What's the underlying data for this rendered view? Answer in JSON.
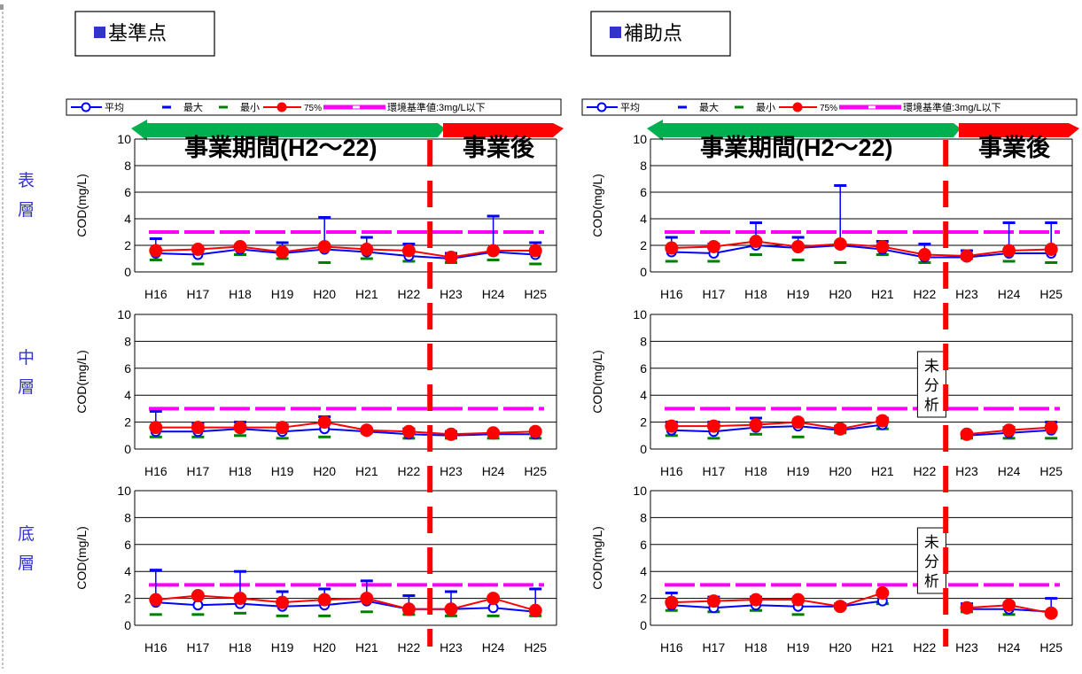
{
  "sections": [
    {
      "title": "■基準点"
    },
    {
      "title": "■補助点"
    }
  ],
  "legend": {
    "mean": "平均",
    "max": "最大",
    "min": "最小",
    "p75": "75%",
    "standard": "環境基準値:3mg/L以下"
  },
  "layers": [
    "表層",
    "中層",
    "底層"
  ],
  "banner": {
    "during": "事業期間(H2～22)",
    "after": "事業後"
  },
  "no_analysis_label": "未分析",
  "colors": {
    "mean": "#0000ff",
    "max": "#0000ff",
    "min": "#008000",
    "p75": "#ff0000",
    "standard": "#ff00ff",
    "arrow_green": "#00b050",
    "arrow_red": "#ff0000",
    "title_square": "#3333cc",
    "layer_label": "#3333cc"
  },
  "chart_data": [
    {
      "type": "line",
      "panel": "基準点",
      "layer": "表層",
      "ylabel": "COD(mg/L)",
      "ylim": [
        0,
        10
      ],
      "yticks": [
        0,
        2,
        4,
        6,
        8,
        10
      ],
      "x": [
        "H16",
        "H17",
        "H18",
        "H19",
        "H20",
        "H21",
        "H22",
        "H23",
        "H24",
        "H25"
      ],
      "standard": 3,
      "series": [
        {
          "name": "平均",
          "values": [
            1.4,
            1.3,
            1.7,
            1.4,
            1.7,
            1.5,
            1.2,
            1.0,
            1.5,
            1.3
          ]
        },
        {
          "name": "最大",
          "values": [
            2.5,
            1.8,
            2.0,
            2.2,
            4.1,
            2.6,
            2.1,
            1.4,
            4.2,
            2.2
          ]
        },
        {
          "name": "最小",
          "values": [
            0.9,
            0.6,
            1.3,
            1.0,
            0.7,
            1.0,
            0.8,
            0.7,
            0.9,
            0.6
          ]
        },
        {
          "name": "75%",
          "values": [
            1.6,
            1.7,
            1.9,
            1.5,
            1.9,
            1.7,
            1.6,
            1.1,
            1.6,
            1.6
          ]
        }
      ]
    },
    {
      "type": "line",
      "panel": "基準点",
      "layer": "中層",
      "ylabel": "COD(mg/L)",
      "ylim": [
        0,
        10
      ],
      "yticks": [
        0,
        2,
        4,
        6,
        8,
        10
      ],
      "x": [
        "H16",
        "H17",
        "H18",
        "H19",
        "H20",
        "H21",
        "H22",
        "H23",
        "H24",
        "H25"
      ],
      "standard": 3,
      "series": [
        {
          "name": "平均",
          "values": [
            1.3,
            1.3,
            1.5,
            1.3,
            1.5,
            1.3,
            1.1,
            1.0,
            1.1,
            1.1
          ]
        },
        {
          "name": "最大",
          "values": [
            2.8,
            1.9,
            2.0,
            1.8,
            2.4,
            1.5,
            1.5,
            1.3,
            1.3,
            1.4
          ]
        },
        {
          "name": "最小",
          "values": [
            0.9,
            0.9,
            1.0,
            0.8,
            0.9,
            1.2,
            0.8,
            0.8,
            0.8,
            0.8
          ]
        },
        {
          "name": "75%",
          "values": [
            1.6,
            1.6,
            1.6,
            1.6,
            2.0,
            1.4,
            1.3,
            1.1,
            1.2,
            1.3
          ]
        }
      ]
    },
    {
      "type": "line",
      "panel": "基準点",
      "layer": "底層",
      "ylabel": "COD(mg/L)",
      "ylim": [
        0,
        10
      ],
      "yticks": [
        0,
        2,
        4,
        6,
        8,
        10
      ],
      "x": [
        "H16",
        "H17",
        "H18",
        "H19",
        "H20",
        "H21",
        "H22",
        "H23",
        "H24",
        "H25"
      ],
      "standard": 3,
      "series": [
        {
          "name": "平均",
          "values": [
            1.7,
            1.5,
            1.6,
            1.4,
            1.5,
            1.8,
            1.2,
            1.2,
            1.3,
            1.0
          ]
        },
        {
          "name": "最大",
          "values": [
            4.1,
            2.3,
            4.0,
            2.5,
            2.7,
            3.3,
            2.2,
            2.5,
            2.1,
            2.7
          ]
        },
        {
          "name": "最小",
          "values": [
            0.8,
            0.8,
            0.9,
            0.7,
            0.7,
            1.0,
            0.8,
            0.7,
            0.7,
            0.7
          ]
        },
        {
          "name": "75%",
          "values": [
            1.9,
            2.2,
            2.0,
            1.7,
            1.9,
            2.0,
            1.2,
            1.2,
            2.0,
            1.1
          ]
        }
      ]
    },
    {
      "type": "line",
      "panel": "補助点",
      "layer": "表層",
      "ylabel": "COD(mg/L)",
      "ylim": [
        0,
        10
      ],
      "yticks": [
        0,
        2,
        4,
        6,
        8,
        10
      ],
      "x": [
        "H16",
        "H17",
        "H18",
        "H19",
        "H20",
        "H21",
        "H22",
        "H23",
        "H24",
        "H25"
      ],
      "standard": 3,
      "series": [
        {
          "name": "平均",
          "values": [
            1.5,
            1.4,
            2.0,
            1.8,
            2.0,
            1.7,
            1.1,
            1.1,
            1.4,
            1.4
          ]
        },
        {
          "name": "最大",
          "values": [
            2.6,
            2.1,
            3.7,
            2.6,
            6.5,
            2.3,
            2.1,
            1.6,
            3.7,
            3.7
          ]
        },
        {
          "name": "最小",
          "values": [
            0.8,
            0.8,
            1.3,
            0.9,
            0.7,
            1.3,
            0.7,
            1.0,
            0.8,
            0.7
          ]
        },
        {
          "name": "75%",
          "values": [
            1.8,
            1.9,
            2.3,
            1.9,
            2.1,
            1.9,
            1.3,
            1.2,
            1.6,
            1.7
          ]
        }
      ]
    },
    {
      "type": "line",
      "panel": "補助点",
      "layer": "中層",
      "ylabel": "COD(mg/L)",
      "ylim": [
        0,
        10
      ],
      "yticks": [
        0,
        2,
        4,
        6,
        8,
        10
      ],
      "x": [
        "H16",
        "H17",
        "H18",
        "H19",
        "H20",
        "H21",
        "H22",
        "H23",
        "H24",
        "H25"
      ],
      "standard": 3,
      "series": [
        {
          "name": "平均",
          "values": [
            1.4,
            1.3,
            1.6,
            1.7,
            1.4,
            1.8,
            null,
            1.0,
            1.2,
            1.4
          ]
        },
        {
          "name": "最大",
          "values": [
            2.0,
            2.0,
            2.3,
            2.0,
            1.7,
            2.3,
            null,
            1.2,
            1.6,
            2.0
          ]
        },
        {
          "name": "最小",
          "values": [
            1.0,
            0.8,
            1.1,
            0.9,
            1.2,
            1.5,
            null,
            0.8,
            0.8,
            0.8
          ]
        },
        {
          "name": "75%",
          "values": [
            1.7,
            1.7,
            1.8,
            2.0,
            1.5,
            2.1,
            null,
            1.1,
            1.4,
            1.6
          ]
        }
      ]
    },
    {
      "type": "line",
      "panel": "補助点",
      "layer": "底層",
      "ylabel": "COD(mg/L)",
      "ylim": [
        0,
        10
      ],
      "yticks": [
        0,
        2,
        4,
        6,
        8,
        10
      ],
      "x": [
        "H16",
        "H17",
        "H18",
        "H19",
        "H20",
        "H21",
        "H22",
        "H23",
        "H24",
        "H25"
      ],
      "standard": 3,
      "series": [
        {
          "name": "平均",
          "values": [
            1.5,
            1.3,
            1.5,
            1.4,
            1.4,
            1.8,
            null,
            1.2,
            1.2,
            1.0
          ]
        },
        {
          "name": "最大",
          "values": [
            2.4,
            2.1,
            2.1,
            2.0,
            1.6,
            2.5,
            null,
            1.6,
            1.6,
            2.0
          ]
        },
        {
          "name": "最小",
          "values": [
            1.1,
            1.0,
            1.1,
            0.8,
            1.3,
            1.6,
            null,
            1.0,
            0.8,
            0.8
          ]
        },
        {
          "name": "75%",
          "values": [
            1.7,
            1.8,
            1.9,
            1.9,
            1.4,
            2.4,
            null,
            1.3,
            1.5,
            0.9
          ]
        }
      ]
    }
  ]
}
